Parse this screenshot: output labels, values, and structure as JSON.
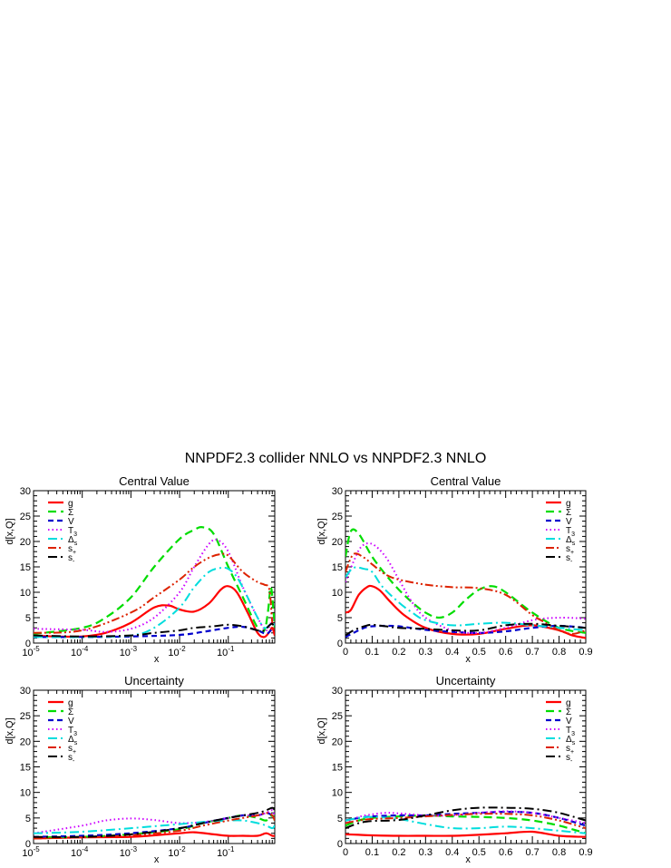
{
  "title": "NNPDF2.3 collider NNLO vs NNPDF2.3 NNLO",
  "legend": [
    {
      "label": "g",
      "sub": "",
      "color": "#ff0000",
      "dash": "",
      "width": 2.2
    },
    {
      "label": "Σ",
      "sub": "",
      "color": "#00dd00",
      "dash": "9,5",
      "width": 2.2
    },
    {
      "label": "V",
      "sub": "",
      "color": "#0000cc",
      "dash": "6,4",
      "width": 2.2
    },
    {
      "label": "T",
      "sub": "3",
      "color": "#cc00ff",
      "dash": "1.5,3",
      "width": 2
    },
    {
      "label": "Δ",
      "sub": "s",
      "color": "#00dddd",
      "dash": "10,4,2,4",
      "width": 2
    },
    {
      "label": "s",
      "sub": "+",
      "color": "#dd2200",
      "dash": "9,3,2,3,2,3",
      "width": 2
    },
    {
      "label": "s",
      "sub": "-",
      "color": "#000000",
      "dash": "10,4,2,4",
      "width": 2
    }
  ],
  "chart_data": [
    {
      "type": "line",
      "title": "Central Value",
      "xlabel": "x",
      "ylabel": "d[x,Q]",
      "xscale": "log",
      "xlim": [
        1e-05,
        0.9
      ],
      "ylim": [
        0,
        30
      ],
      "xtick_labels": [
        "10-5",
        "10-4",
        "10-3",
        "10-2",
        "10-1"
      ],
      "ytick_labels": [
        "0",
        "5",
        "10",
        "15",
        "20",
        "25",
        "30"
      ],
      "series": [
        {
          "name": "g",
          "x": [
            1e-05,
            3e-05,
            0.0001,
            0.0003,
            0.001,
            0.003,
            0.006,
            0.01,
            0.02,
            0.04,
            0.07,
            0.1,
            0.15,
            0.25,
            0.4,
            0.55,
            0.7,
            0.8,
            0.9
          ],
          "y": [
            1.5,
            1.3,
            1.3,
            2.0,
            4.0,
            7.0,
            7.4,
            6.6,
            6.2,
            7.8,
            10.5,
            11.2,
            10.0,
            6.0,
            2.0,
            1.2,
            2.2,
            3.0,
            1.5
          ]
        },
        {
          "name": "Σ",
          "x": [
            1e-05,
            0.0001,
            0.0003,
            0.001,
            0.003,
            0.01,
            0.02,
            0.03,
            0.05,
            0.1,
            0.2,
            0.4,
            0.55,
            0.65,
            0.75,
            0.85,
            0.9
          ],
          "y": [
            1.8,
            3.0,
            5.0,
            9.0,
            15.0,
            20.5,
            22.3,
            22.8,
            21.5,
            15.0,
            9.0,
            3.0,
            2.5,
            6.0,
            11.0,
            6.0,
            3.0
          ]
        },
        {
          "name": "V",
          "x": [
            1e-05,
            0.0001,
            0.001,
            0.01,
            0.03,
            0.1,
            0.2,
            0.4,
            0.6,
            0.75,
            0.9
          ],
          "y": [
            1.2,
            1.2,
            1.3,
            1.6,
            2.2,
            3.0,
            3.2,
            2.5,
            1.8,
            2.5,
            3.0
          ]
        },
        {
          "name": "T3",
          "x": [
            1e-05,
            0.0001,
            0.0003,
            0.001,
            0.003,
            0.01,
            0.02,
            0.04,
            0.06,
            0.1,
            0.2,
            0.4,
            0.6,
            0.8,
            0.9
          ],
          "y": [
            2.8,
            2.6,
            2.2,
            2.8,
            5.0,
            10.0,
            15.0,
            19.5,
            20.3,
            18.0,
            11.0,
            5.0,
            2.5,
            4.5,
            4.0
          ]
        },
        {
          "name": "Δs",
          "x": [
            1e-05,
            0.0001,
            0.001,
            0.003,
            0.01,
            0.02,
            0.04,
            0.07,
            0.1,
            0.15,
            0.25,
            0.4,
            0.55,
            0.7,
            0.8,
            0.9
          ],
          "y": [
            1.2,
            1.2,
            1.5,
            3.0,
            7.0,
            11.0,
            14.0,
            14.8,
            14.6,
            13.0,
            9.0,
            5.0,
            3.0,
            3.5,
            4.0,
            3.5
          ]
        },
        {
          "name": "s+",
          "x": [
            1e-05,
            0.0001,
            0.001,
            0.003,
            0.01,
            0.02,
            0.04,
            0.07,
            0.1,
            0.2,
            0.4,
            0.55,
            0.7,
            0.8,
            0.9
          ],
          "y": [
            2.0,
            2.5,
            6.0,
            9.0,
            12.5,
            15.0,
            16.8,
            17.5,
            17.2,
            14.0,
            12.0,
            11.5,
            10.5,
            4.0,
            2.5
          ]
        },
        {
          "name": "s-",
          "x": [
            1e-05,
            0.0001,
            0.001,
            0.003,
            0.01,
            0.02,
            0.05,
            0.1,
            0.2,
            0.4,
            0.55,
            0.7,
            0.8,
            0.9
          ],
          "y": [
            1.5,
            1.3,
            1.5,
            2.0,
            2.5,
            3.0,
            3.3,
            3.6,
            3.3,
            2.5,
            2.5,
            3.5,
            3.8,
            3.0
          ]
        }
      ]
    },
    {
      "type": "line",
      "title": "Central Value",
      "xlabel": "x",
      "ylabel": "d[x,Q]",
      "xscale": "linear",
      "xlim": [
        0,
        0.9
      ],
      "ylim": [
        0,
        30
      ],
      "xtick_labels": [
        "0",
        "0.1",
        "0.2",
        "0.3",
        "0.4",
        "0.5",
        "0.6",
        "0.7",
        "0.8",
        "0.9"
      ],
      "ytick_labels": [
        "0",
        "5",
        "10",
        "15",
        "20",
        "25",
        "30"
      ],
      "series": [
        {
          "name": "g",
          "x": [
            0,
            0.02,
            0.05,
            0.08,
            0.1,
            0.13,
            0.17,
            0.22,
            0.3,
            0.4,
            0.5,
            0.6,
            0.7,
            0.8,
            0.85,
            0.9
          ],
          "y": [
            6.0,
            6.5,
            9.5,
            11.0,
            11.2,
            10.3,
            8.0,
            5.5,
            3.0,
            1.8,
            1.8,
            2.8,
            3.5,
            2.5,
            1.5,
            1.0
          ]
        },
        {
          "name": "Σ",
          "x": [
            0,
            0.02,
            0.05,
            0.1,
            0.15,
            0.2,
            0.25,
            0.3,
            0.35,
            0.4,
            0.45,
            0.5,
            0.55,
            0.6,
            0.7,
            0.8,
            0.9
          ],
          "y": [
            17.0,
            22.0,
            21.5,
            17.0,
            13.5,
            10.5,
            8.0,
            6.0,
            5.0,
            6.0,
            8.5,
            10.5,
            11.2,
            10.0,
            6.0,
            3.0,
            2.0
          ]
        },
        {
          "name": "V",
          "x": [
            0,
            0.03,
            0.07,
            0.1,
            0.15,
            0.2,
            0.3,
            0.4,
            0.5,
            0.6,
            0.7,
            0.8,
            0.9
          ],
          "y": [
            1.2,
            2.0,
            3.0,
            3.3,
            3.4,
            3.3,
            2.6,
            2.2,
            2.0,
            2.3,
            3.0,
            3.4,
            3.0
          ]
        },
        {
          "name": "T3",
          "x": [
            0,
            0.03,
            0.06,
            0.1,
            0.15,
            0.2,
            0.25,
            0.3,
            0.4,
            0.5,
            0.6,
            0.7,
            0.8,
            0.9
          ],
          "y": [
            12.0,
            16.0,
            19.0,
            19.5,
            17.0,
            12.5,
            8.0,
            5.0,
            2.5,
            2.0,
            3.0,
            4.5,
            5.0,
            4.8
          ]
        },
        {
          "name": "Δs",
          "x": [
            0,
            0.03,
            0.07,
            0.1,
            0.14,
            0.2,
            0.25,
            0.3,
            0.4,
            0.5,
            0.6,
            0.7,
            0.8,
            0.9
          ],
          "y": [
            13.0,
            14.8,
            14.6,
            14.0,
            11.0,
            8.0,
            6.0,
            4.5,
            3.5,
            3.8,
            4.0,
            3.5,
            3.0,
            2.5
          ]
        },
        {
          "name": "s+",
          "x": [
            0,
            0.03,
            0.07,
            0.1,
            0.15,
            0.2,
            0.3,
            0.4,
            0.5,
            0.6,
            0.7,
            0.75,
            0.8,
            0.85,
            0.9
          ],
          "y": [
            14.0,
            17.5,
            16.8,
            15.5,
            13.5,
            12.5,
            11.5,
            11.0,
            10.8,
            9.5,
            5.5,
            4.0,
            2.5,
            1.8,
            2.5
          ]
        },
        {
          "name": "s-",
          "x": [
            0,
            0.03,
            0.07,
            0.1,
            0.15,
            0.2,
            0.3,
            0.4,
            0.5,
            0.6,
            0.7,
            0.8,
            0.9
          ],
          "y": [
            1.5,
            2.5,
            3.3,
            3.6,
            3.3,
            3.0,
            2.8,
            2.5,
            2.5,
            3.5,
            3.8,
            3.4,
            3.0
          ]
        }
      ]
    },
    {
      "type": "line",
      "title": "Uncertainty",
      "xlabel": "x",
      "ylabel": "d[x,Q]",
      "xscale": "log",
      "xlim": [
        1e-05,
        0.9
      ],
      "ylim": [
        0,
        30
      ],
      "xtick_labels": [
        "10-5",
        "10-4",
        "10-3",
        "10-2",
        "10-1"
      ],
      "ytick_labels": [
        "0",
        "5",
        "10",
        "15",
        "20",
        "25",
        "30"
      ],
      "series": [
        {
          "name": "g",
          "x": [
            1e-05,
            0.0001,
            0.001,
            0.003,
            0.01,
            0.02,
            0.05,
            0.1,
            0.2,
            0.4,
            0.6,
            0.8,
            0.9
          ],
          "y": [
            1.0,
            1.2,
            1.3,
            1.6,
            2.0,
            2.2,
            1.8,
            1.5,
            1.5,
            1.5,
            2.0,
            1.5,
            1.5
          ]
        },
        {
          "name": "Σ",
          "x": [
            1e-05,
            0.0001,
            0.001,
            0.01,
            0.03,
            0.1,
            0.2,
            0.4,
            0.6,
            0.8,
            0.9
          ],
          "y": [
            1.2,
            1.3,
            1.8,
            2.8,
            4.0,
            5.0,
            5.5,
            5.0,
            4.5,
            5.5,
            4.5
          ]
        },
        {
          "name": "V",
          "x": [
            1e-05,
            0.0001,
            0.001,
            0.01,
            0.03,
            0.1,
            0.2,
            0.4,
            0.6,
            0.8,
            0.9
          ],
          "y": [
            1.3,
            1.5,
            2.0,
            3.0,
            4.0,
            5.0,
            5.5,
            5.5,
            6.0,
            5.5,
            5.0
          ]
        },
        {
          "name": "T3",
          "x": [
            1e-05,
            0.0001,
            0.0003,
            0.001,
            0.003,
            0.01,
            0.03,
            0.1,
            0.2,
            0.4,
            0.6,
            0.8,
            0.9
          ],
          "y": [
            2.0,
            3.5,
            4.5,
            4.9,
            4.6,
            4.0,
            4.2,
            5.0,
            5.5,
            5.5,
            6.0,
            6.5,
            5.0
          ]
        },
        {
          "name": "Δs",
          "x": [
            1e-05,
            0.0001,
            0.001,
            0.01,
            0.03,
            0.1,
            0.2,
            0.4,
            0.6,
            0.8,
            0.9
          ],
          "y": [
            2.0,
            2.3,
            3.0,
            3.8,
            4.2,
            4.5,
            4.5,
            4.0,
            3.5,
            3.0,
            3.5
          ]
        },
        {
          "name": "s+",
          "x": [
            1e-05,
            0.0001,
            0.001,
            0.01,
            0.03,
            0.1,
            0.2,
            0.4,
            0.6,
            0.8,
            0.9
          ],
          "y": [
            1.0,
            1.2,
            1.6,
            2.5,
            3.5,
            4.5,
            5.0,
            5.5,
            6.0,
            5.5,
            4.5
          ]
        },
        {
          "name": "s-",
          "x": [
            1e-05,
            0.0001,
            0.001,
            0.01,
            0.03,
            0.1,
            0.2,
            0.4,
            0.6,
            0.8,
            0.9
          ],
          "y": [
            1.3,
            1.3,
            1.8,
            3.0,
            4.0,
            5.0,
            5.5,
            6.0,
            6.5,
            7.0,
            6.5
          ]
        }
      ]
    },
    {
      "type": "line",
      "title": "Uncertainty",
      "xlabel": "x",
      "ylabel": "d[x,Q]",
      "xscale": "linear",
      "xlim": [
        0,
        0.9
      ],
      "ylim": [
        0,
        30
      ],
      "xtick_labels": [
        "0",
        "0.1",
        "0.2",
        "0.3",
        "0.4",
        "0.5",
        "0.6",
        "0.7",
        "0.8",
        "0.9"
      ],
      "ytick_labels": [
        "0",
        "5",
        "10",
        "15",
        "20",
        "25",
        "30"
      ],
      "series": [
        {
          "name": "g",
          "x": [
            0,
            0.05,
            0.1,
            0.2,
            0.3,
            0.4,
            0.5,
            0.6,
            0.7,
            0.8,
            0.9
          ],
          "y": [
            1.8,
            1.7,
            1.6,
            1.5,
            1.5,
            1.5,
            1.7,
            2.0,
            2.3,
            1.5,
            1.3
          ]
        },
        {
          "name": "Σ",
          "x": [
            0,
            0.05,
            0.1,
            0.2,
            0.3,
            0.4,
            0.5,
            0.6,
            0.7,
            0.8,
            0.9
          ],
          "y": [
            3.5,
            4.5,
            5.0,
            5.3,
            5.5,
            5.3,
            5.2,
            5.0,
            4.5,
            3.5,
            2.0
          ]
        },
        {
          "name": "V",
          "x": [
            0,
            0.05,
            0.1,
            0.2,
            0.3,
            0.4,
            0.5,
            0.6,
            0.7,
            0.8,
            0.9
          ],
          "y": [
            4.5,
            5.0,
            5.3,
            5.5,
            5.5,
            5.8,
            6.0,
            6.2,
            6.0,
            5.0,
            3.5
          ]
        },
        {
          "name": "T3",
          "x": [
            0,
            0.05,
            0.1,
            0.15,
            0.2,
            0.3,
            0.4,
            0.5,
            0.6,
            0.7,
            0.8,
            0.9
          ],
          "y": [
            4.0,
            5.2,
            5.7,
            6.0,
            5.9,
            5.5,
            5.5,
            6.0,
            6.3,
            6.0,
            5.0,
            4.0
          ]
        },
        {
          "name": "Δs",
          "x": [
            0,
            0.05,
            0.1,
            0.2,
            0.3,
            0.4,
            0.5,
            0.6,
            0.7,
            0.8,
            0.9
          ],
          "y": [
            4.5,
            5.0,
            5.2,
            4.8,
            3.8,
            3.0,
            3.0,
            3.3,
            3.0,
            2.5,
            2.0
          ]
        },
        {
          "name": "s+",
          "x": [
            0,
            0.05,
            0.1,
            0.2,
            0.3,
            0.4,
            0.5,
            0.6,
            0.7,
            0.8,
            0.9
          ],
          "y": [
            4.0,
            4.5,
            4.8,
            5.0,
            5.3,
            5.6,
            5.8,
            5.8,
            5.5,
            4.5,
            3.0
          ]
        },
        {
          "name": "s-",
          "x": [
            0,
            0.05,
            0.1,
            0.2,
            0.3,
            0.4,
            0.5,
            0.6,
            0.7,
            0.8,
            0.9
          ],
          "y": [
            3.0,
            4.0,
            4.4,
            4.6,
            5.5,
            6.5,
            7.0,
            7.0,
            6.8,
            6.0,
            4.5
          ]
        }
      ]
    }
  ]
}
